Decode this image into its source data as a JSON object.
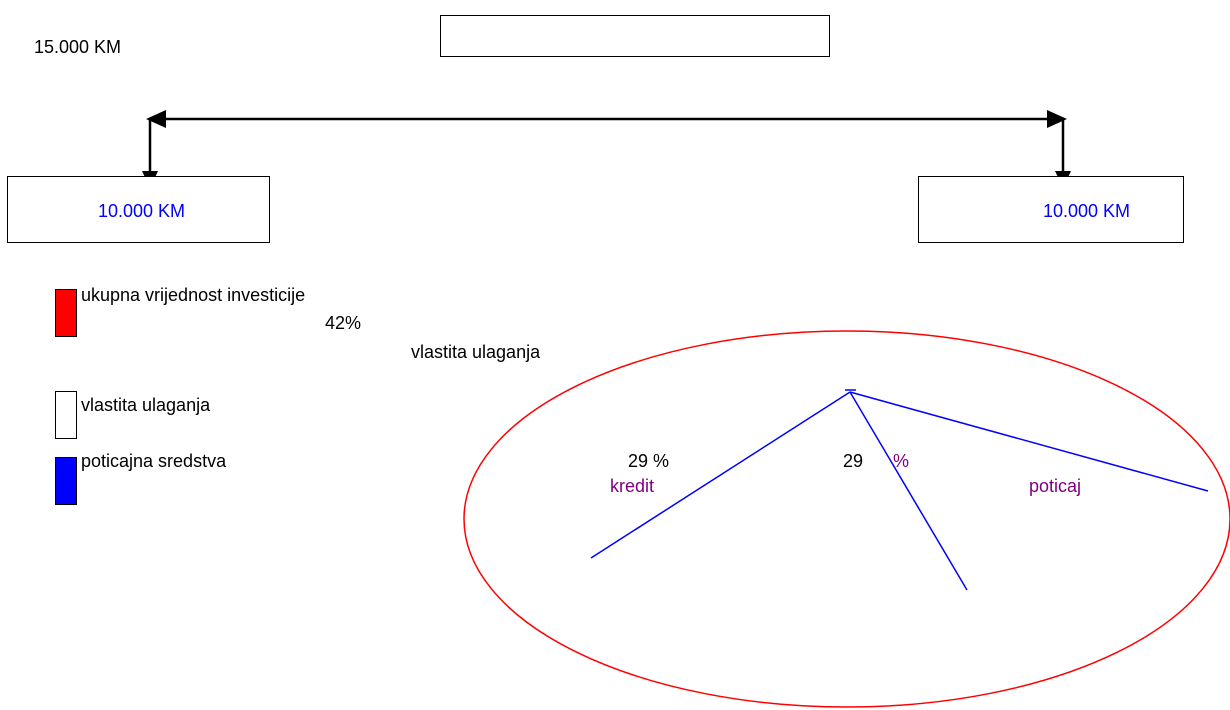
{
  "total_amount": "15.000 KM",
  "top_box_text": "",
  "left_box": {
    "text": "10.000 KM"
  },
  "right_box": {
    "text": "10.000 KM"
  },
  "legend": [
    {
      "label": "ukupna vrijednost investicije",
      "color": "#ff0000"
    },
    {
      "label": "vlastita ulaganja",
      "color": "#ffffff"
    },
    {
      "label": "poticajna sredstva",
      "color": "#0000ff"
    }
  ],
  "pie": {
    "title": "vlastita ulaganja",
    "slices": [
      {
        "percent_label": "42%",
        "name": ""
      },
      {
        "percent_label": "29 %",
        "name": "kredit"
      },
      {
        "percent_label": "29",
        "name": ""
      }
    ],
    "percent_sign": "%",
    "extra_label": "poticaj",
    "outline_color": "#ff0000",
    "divider_color": "#0000ff",
    "label_color": "#800080"
  },
  "colors": {
    "amount_text": "#0000ff",
    "arrow": "#000000"
  }
}
